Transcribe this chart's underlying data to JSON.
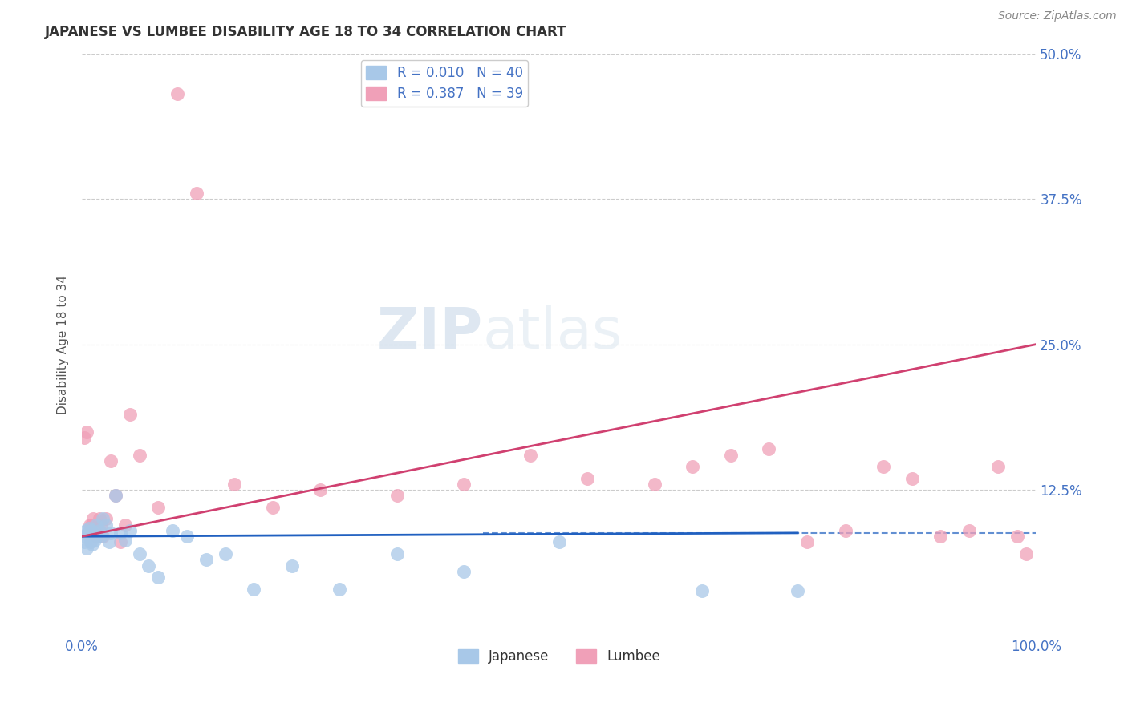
{
  "title": "JAPANESE VS LUMBEE DISABILITY AGE 18 TO 34 CORRELATION CHART",
  "source": "Source: ZipAtlas.com",
  "ylabel": "Disability Age 18 to 34",
  "xlim": [
    0,
    1.0
  ],
  "ylim": [
    0,
    0.5
  ],
  "japanese_color": "#a8c8e8",
  "lumbee_color": "#f0a0b8",
  "japanese_line_color": "#2060c0",
  "lumbee_line_color": "#d04070",
  "watermark_zip": "ZIP",
  "watermark_atlas": "atlas",
  "japanese_R": 0.01,
  "lumbee_R": 0.387,
  "japanese_N": 40,
  "lumbee_N": 39,
  "japanese_line_y_start": 0.085,
  "japanese_line_y_end": 0.088,
  "japanese_line_x_start": 0.0,
  "japanese_line_x_end": 0.75,
  "lumbee_line_y_start": 0.085,
  "lumbee_line_y_end": 0.25,
  "lumbee_line_x_start": 0.0,
  "lumbee_line_x_end": 1.0,
  "dashed_line_y": 0.088,
  "dashed_line_x_start": 0.42,
  "dashed_line_x_end": 1.0,
  "japanese_x": [
    0.002,
    0.003,
    0.004,
    0.005,
    0.006,
    0.007,
    0.008,
    0.009,
    0.01,
    0.011,
    0.012,
    0.013,
    0.014,
    0.015,
    0.016,
    0.018,
    0.02,
    0.022,
    0.025,
    0.028,
    0.03,
    0.035,
    0.04,
    0.045,
    0.05,
    0.06,
    0.07,
    0.08,
    0.095,
    0.11,
    0.13,
    0.15,
    0.18,
    0.22,
    0.27,
    0.33,
    0.4,
    0.5,
    0.65,
    0.75
  ],
  "japanese_y": [
    0.08,
    0.085,
    0.09,
    0.075,
    0.088,
    0.092,
    0.085,
    0.08,
    0.09,
    0.078,
    0.088,
    0.082,
    0.086,
    0.095,
    0.085,
    0.09,
    0.085,
    0.1,
    0.095,
    0.08,
    0.088,
    0.12,
    0.088,
    0.082,
    0.09,
    0.07,
    0.06,
    0.05,
    0.09,
    0.085,
    0.065,
    0.07,
    0.04,
    0.06,
    0.04,
    0.07,
    0.055,
    0.08,
    0.038,
    0.038
  ],
  "lumbee_x": [
    0.002,
    0.005,
    0.008,
    0.01,
    0.012,
    0.015,
    0.018,
    0.02,
    0.022,
    0.025,
    0.03,
    0.035,
    0.04,
    0.045,
    0.05,
    0.06,
    0.08,
    0.1,
    0.12,
    0.16,
    0.2,
    0.25,
    0.33,
    0.4,
    0.47,
    0.53,
    0.6,
    0.64,
    0.68,
    0.72,
    0.76,
    0.8,
    0.84,
    0.87,
    0.9,
    0.93,
    0.96,
    0.98,
    0.99
  ],
  "lumbee_y": [
    0.17,
    0.175,
    0.095,
    0.095,
    0.1,
    0.085,
    0.1,
    0.095,
    0.085,
    0.1,
    0.15,
    0.12,
    0.08,
    0.095,
    0.19,
    0.155,
    0.11,
    0.465,
    0.38,
    0.13,
    0.11,
    0.125,
    0.12,
    0.13,
    0.155,
    0.135,
    0.13,
    0.145,
    0.155,
    0.16,
    0.08,
    0.09,
    0.145,
    0.135,
    0.085,
    0.09,
    0.145,
    0.085,
    0.07
  ],
  "background_color": "#ffffff",
  "grid_color": "#cccccc",
  "title_color": "#333333",
  "axis_label_color": "#555555",
  "tick_color": "#4472c4"
}
